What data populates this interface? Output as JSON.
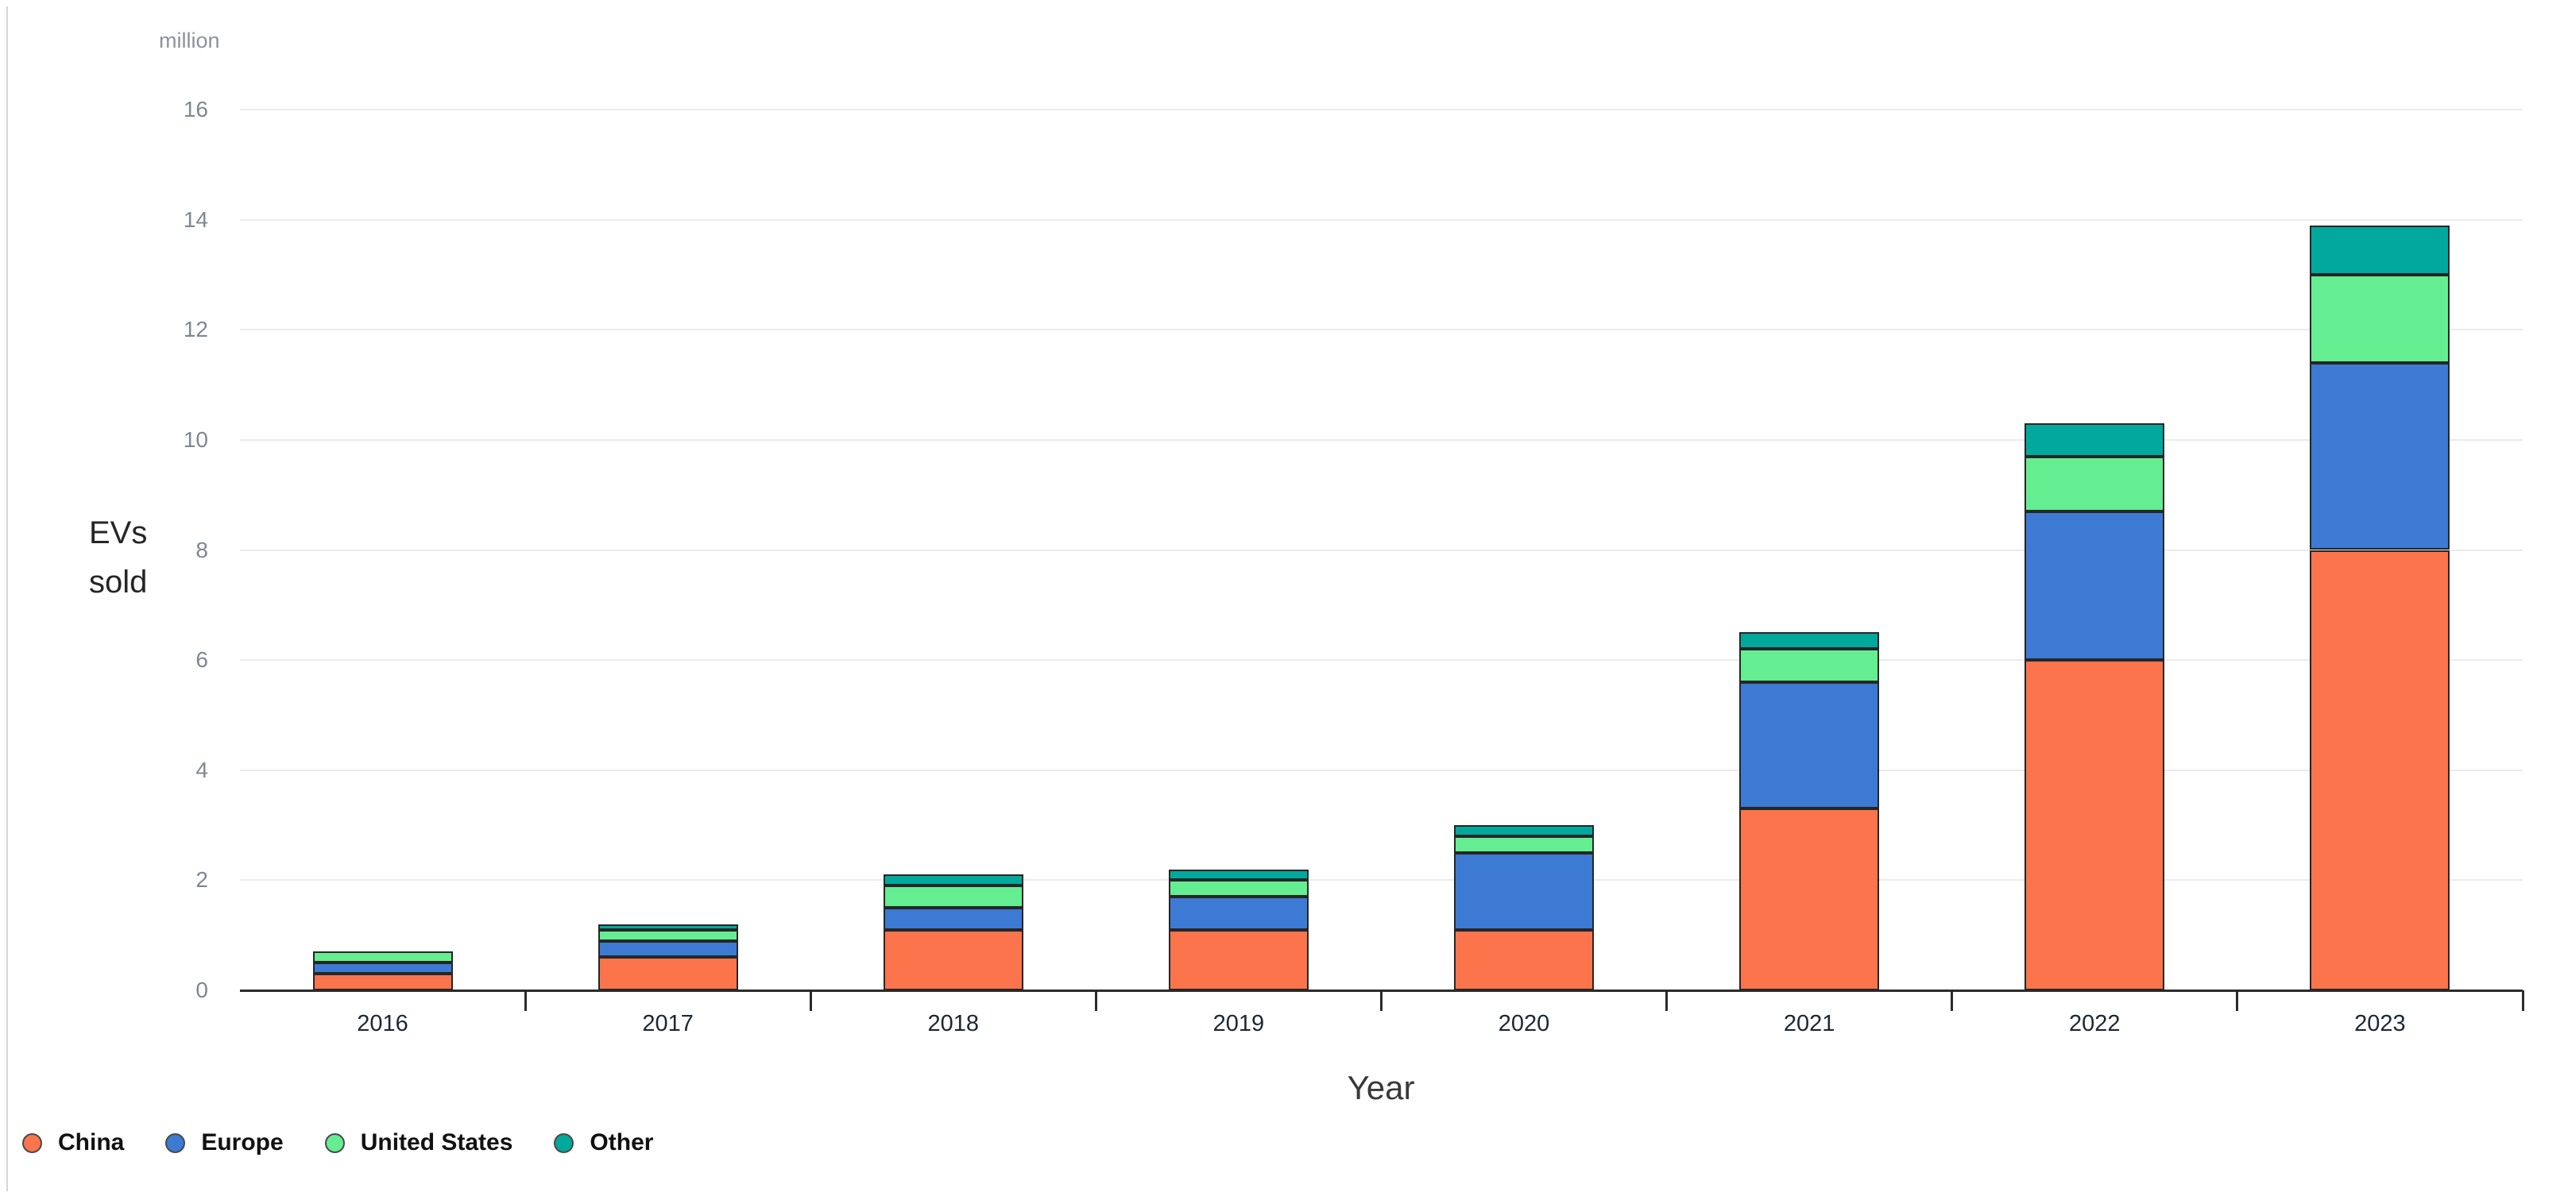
{
  "chart_data": {
    "type": "bar",
    "stacked": true,
    "unit": "million",
    "ylabel": "EVs sold",
    "xlabel": "Year",
    "categories": [
      "2016",
      "2017",
      "2018",
      "2019",
      "2020",
      "2021",
      "2022",
      "2023"
    ],
    "series": [
      {
        "name": "China",
        "color": "#FB744C",
        "values": [
          0.3,
          0.6,
          1.1,
          1.1,
          1.1,
          3.3,
          6.0,
          8.0
        ]
      },
      {
        "name": "Europe",
        "color": "#3D7AD3",
        "values": [
          0.2,
          0.3,
          0.4,
          0.6,
          1.4,
          2.3,
          2.7,
          3.4
        ]
      },
      {
        "name": "United States",
        "color": "#64EE91",
        "values": [
          0.2,
          0.2,
          0.4,
          0.3,
          0.3,
          0.6,
          1.0,
          1.6
        ]
      },
      {
        "name": "Other",
        "color": "#01A99C",
        "values": [
          0.0,
          0.1,
          0.2,
          0.2,
          0.2,
          0.3,
          0.6,
          0.9
        ]
      }
    ],
    "totals": [
      0.7,
      1.2,
      2.1,
      2.2,
      3.0,
      6.5,
      10.3,
      13.9
    ],
    "ylim": [
      0,
      16
    ],
    "yticks": [
      0,
      2,
      4,
      6,
      8,
      10,
      12,
      14,
      16
    ],
    "grid": true,
    "legend_position": "bottom-left",
    "colors": {
      "axis": "#2b2b2b",
      "gridline": "#ebebeb",
      "y_tick_text": "#7e8792",
      "x_tick_text": "#1c2733",
      "segment_border": "#262626"
    }
  }
}
